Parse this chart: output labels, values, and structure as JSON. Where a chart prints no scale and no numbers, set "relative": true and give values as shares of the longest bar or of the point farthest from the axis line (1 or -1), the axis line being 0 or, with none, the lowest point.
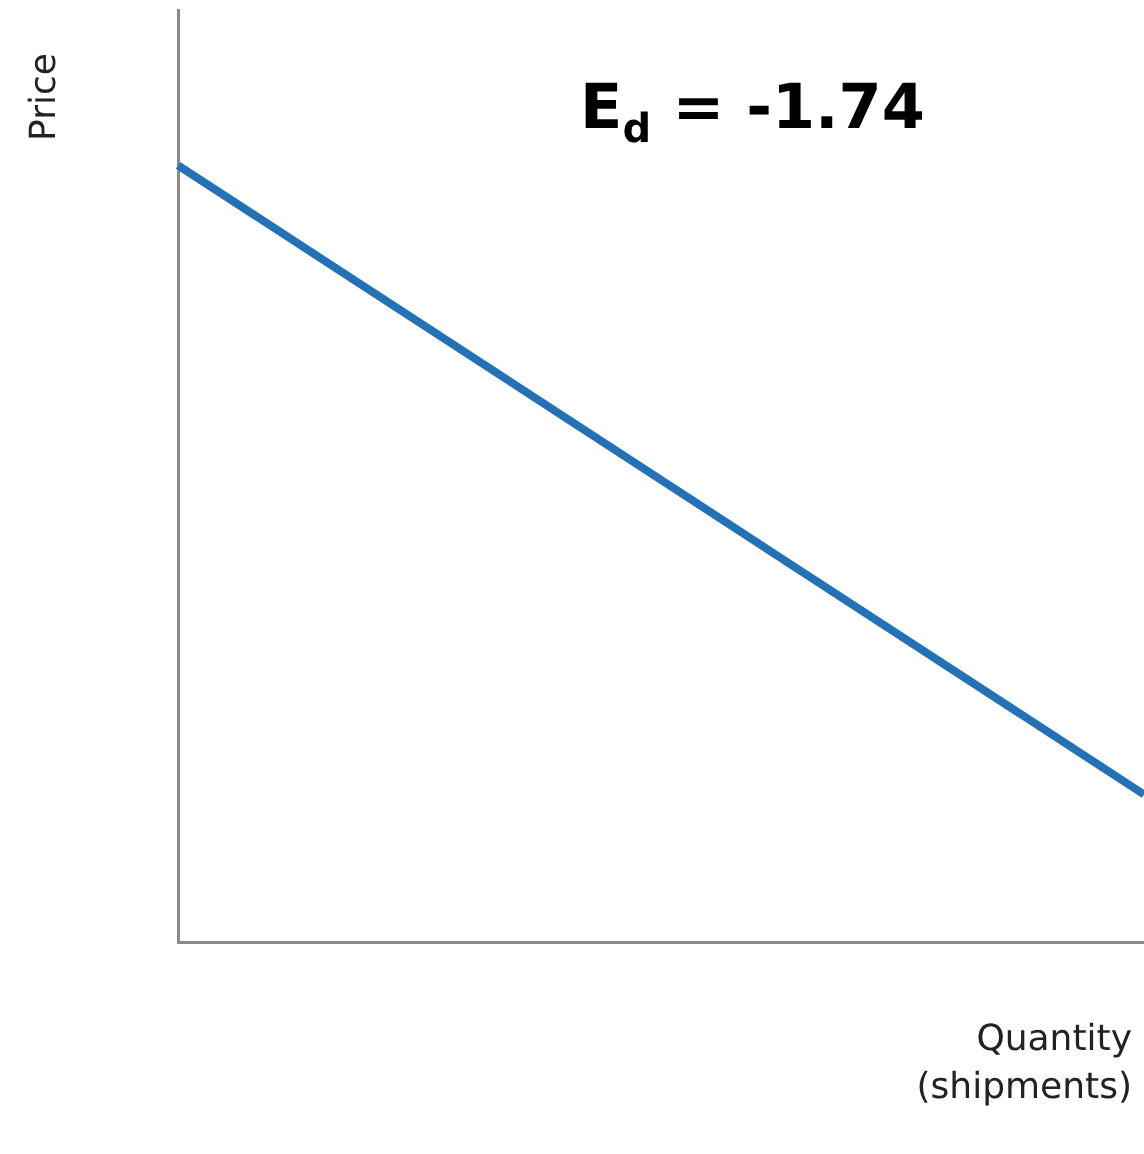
{
  "chart_data": {
    "type": "line",
    "relative": true,
    "ylabel": "Price",
    "xlabel": "Quantity (shipments)",
    "categories": [
      null,
      null
    ],
    "series": [
      {
        "color": "#2571b5",
        "values": [
          1,
          0.19
        ]
      }
    ],
    "annotations": [
      "E$_{d}$ = -1.74"
    ],
    "grid": false,
    "legend": false,
    "tick_labels": false,
    "marker": "none",
    "line_style": "solid"
  }
}
